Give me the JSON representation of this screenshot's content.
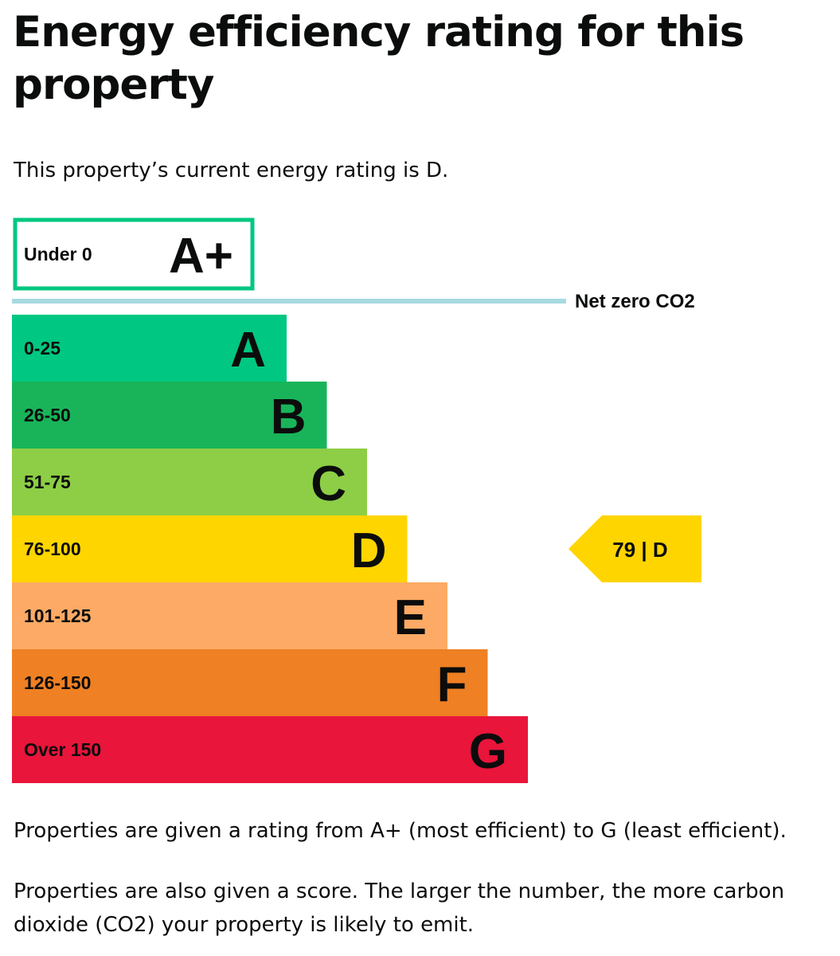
{
  "page": {
    "title": "Energy efficiency rating for this property",
    "intro": "This property’s current energy rating is D.",
    "footnote_1": "Properties are given a rating from A+ (most efficient) to G (least efficient).",
    "footnote_2": "Properties are also given a score. The larger the number, the more carbon dioxide (CO2) your property is likely to emit."
  },
  "chart_data": {
    "type": "bar",
    "title": "",
    "bands": [
      {
        "letter": "A+",
        "range": "Under 0",
        "color": "#00c781",
        "style": "outline"
      },
      {
        "letter": "A",
        "range": "0-25",
        "color": "#00c781",
        "style": "filled"
      },
      {
        "letter": "B",
        "range": "26-50",
        "color": "#19b459",
        "style": "filled"
      },
      {
        "letter": "C",
        "range": "51-75",
        "color": "#8dce46",
        "style": "filled"
      },
      {
        "letter": "D",
        "range": "76-100",
        "color": "#ffd500",
        "style": "filled"
      },
      {
        "letter": "E",
        "range": "101-125",
        "color": "#fcaa65",
        "style": "filled"
      },
      {
        "letter": "F",
        "range": "126-150",
        "color": "#ef8023",
        "style": "filled"
      },
      {
        "letter": "G",
        "range": "Over 150",
        "color": "#e9153b",
        "style": "filled"
      }
    ],
    "net_zero_label": "Net zero CO2",
    "net_zero_color": "#a8dadf",
    "current": {
      "score": 79,
      "letter": "D",
      "label": "79 | D",
      "color": "#ffd500"
    }
  }
}
